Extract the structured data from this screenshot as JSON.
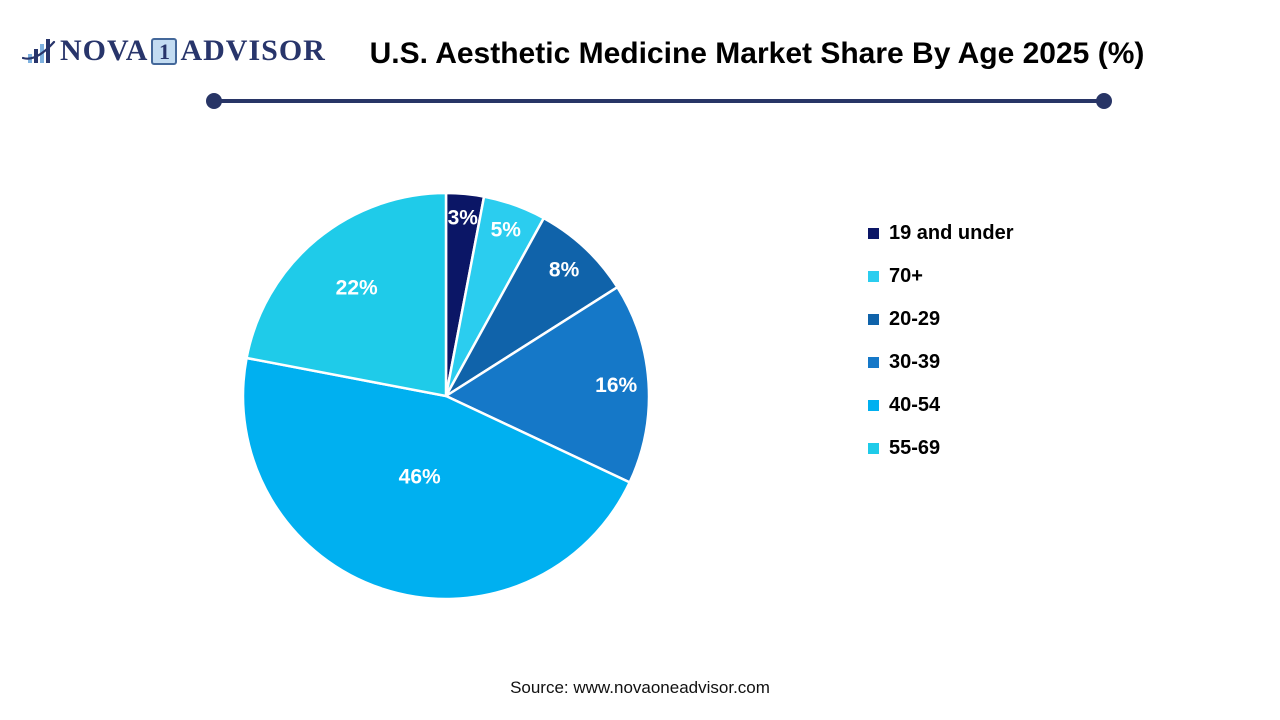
{
  "logo": {
    "brand_prefix": "NOVA",
    "brand_number": "1",
    "brand_suffix": "ADVISOR"
  },
  "header": {
    "title": "U.S. Aesthetic Medicine Market Share By Age 2025 (%)"
  },
  "chart_data": {
    "type": "pie",
    "title": "U.S. Aesthetic Medicine Market Share By Age 2025 (%)",
    "unit": "%",
    "start_angle_deg": 0,
    "direction": "clockwise",
    "legend_position": "right",
    "data_label_color": "#FFFFFF",
    "slices": [
      {
        "label": "19 and under",
        "value": 3,
        "color": "#0B1666"
      },
      {
        "label": "70+",
        "value": 5,
        "color": "#2BCDEF"
      },
      {
        "label": "20-29",
        "value": 8,
        "color": "#1063AA"
      },
      {
        "label": "30-39",
        "value": 16,
        "color": "#1578C8"
      },
      {
        "label": "40-54",
        "value": 46,
        "color": "#00B0F0"
      },
      {
        "label": "55-69",
        "value": 22,
        "color": "#1FCBE9"
      }
    ]
  },
  "footer": {
    "source": "Source: www.novaoneadvisor.com"
  },
  "theme": {
    "divider_color": "#283566",
    "logo_navy": "#28356B",
    "logo_light_blue": "#7FB2E0",
    "logo_one_box_bg": "#C3DCF2"
  }
}
